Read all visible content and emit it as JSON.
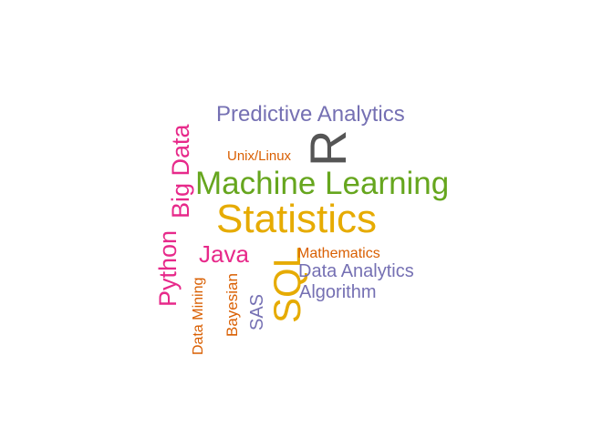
{
  "word_cloud": {
    "words": [
      {
        "text": "Predictive Analytics",
        "color": "#7570b3",
        "rotated": false
      },
      {
        "text": "R",
        "color": "#555555",
        "rotated": true
      },
      {
        "text": "Unix/Linux",
        "color": "#d95f02",
        "rotated": false
      },
      {
        "text": "Big Data",
        "color": "#e7298a",
        "rotated": true
      },
      {
        "text": "Machine Learning",
        "color": "#66a61e",
        "rotated": false
      },
      {
        "text": "Statistics",
        "color": "#e6ab02",
        "rotated": false
      },
      {
        "text": "Python",
        "color": "#e7298a",
        "rotated": true
      },
      {
        "text": "Java",
        "color": "#e7298a",
        "rotated": false
      },
      {
        "text": "SQL",
        "color": "#e6ab02",
        "rotated": true
      },
      {
        "text": "Mathematics",
        "color": "#d95f02",
        "rotated": false
      },
      {
        "text": "Data Analytics",
        "color": "#7570b3",
        "rotated": false
      },
      {
        "text": "Algorithm",
        "color": "#7570b3",
        "rotated": false
      },
      {
        "text": "Data Mining",
        "color": "#d95f02",
        "rotated": true
      },
      {
        "text": "Bayesian",
        "color": "#d95f02",
        "rotated": true
      },
      {
        "text": "SAS",
        "color": "#7570b3",
        "rotated": true
      }
    ]
  }
}
